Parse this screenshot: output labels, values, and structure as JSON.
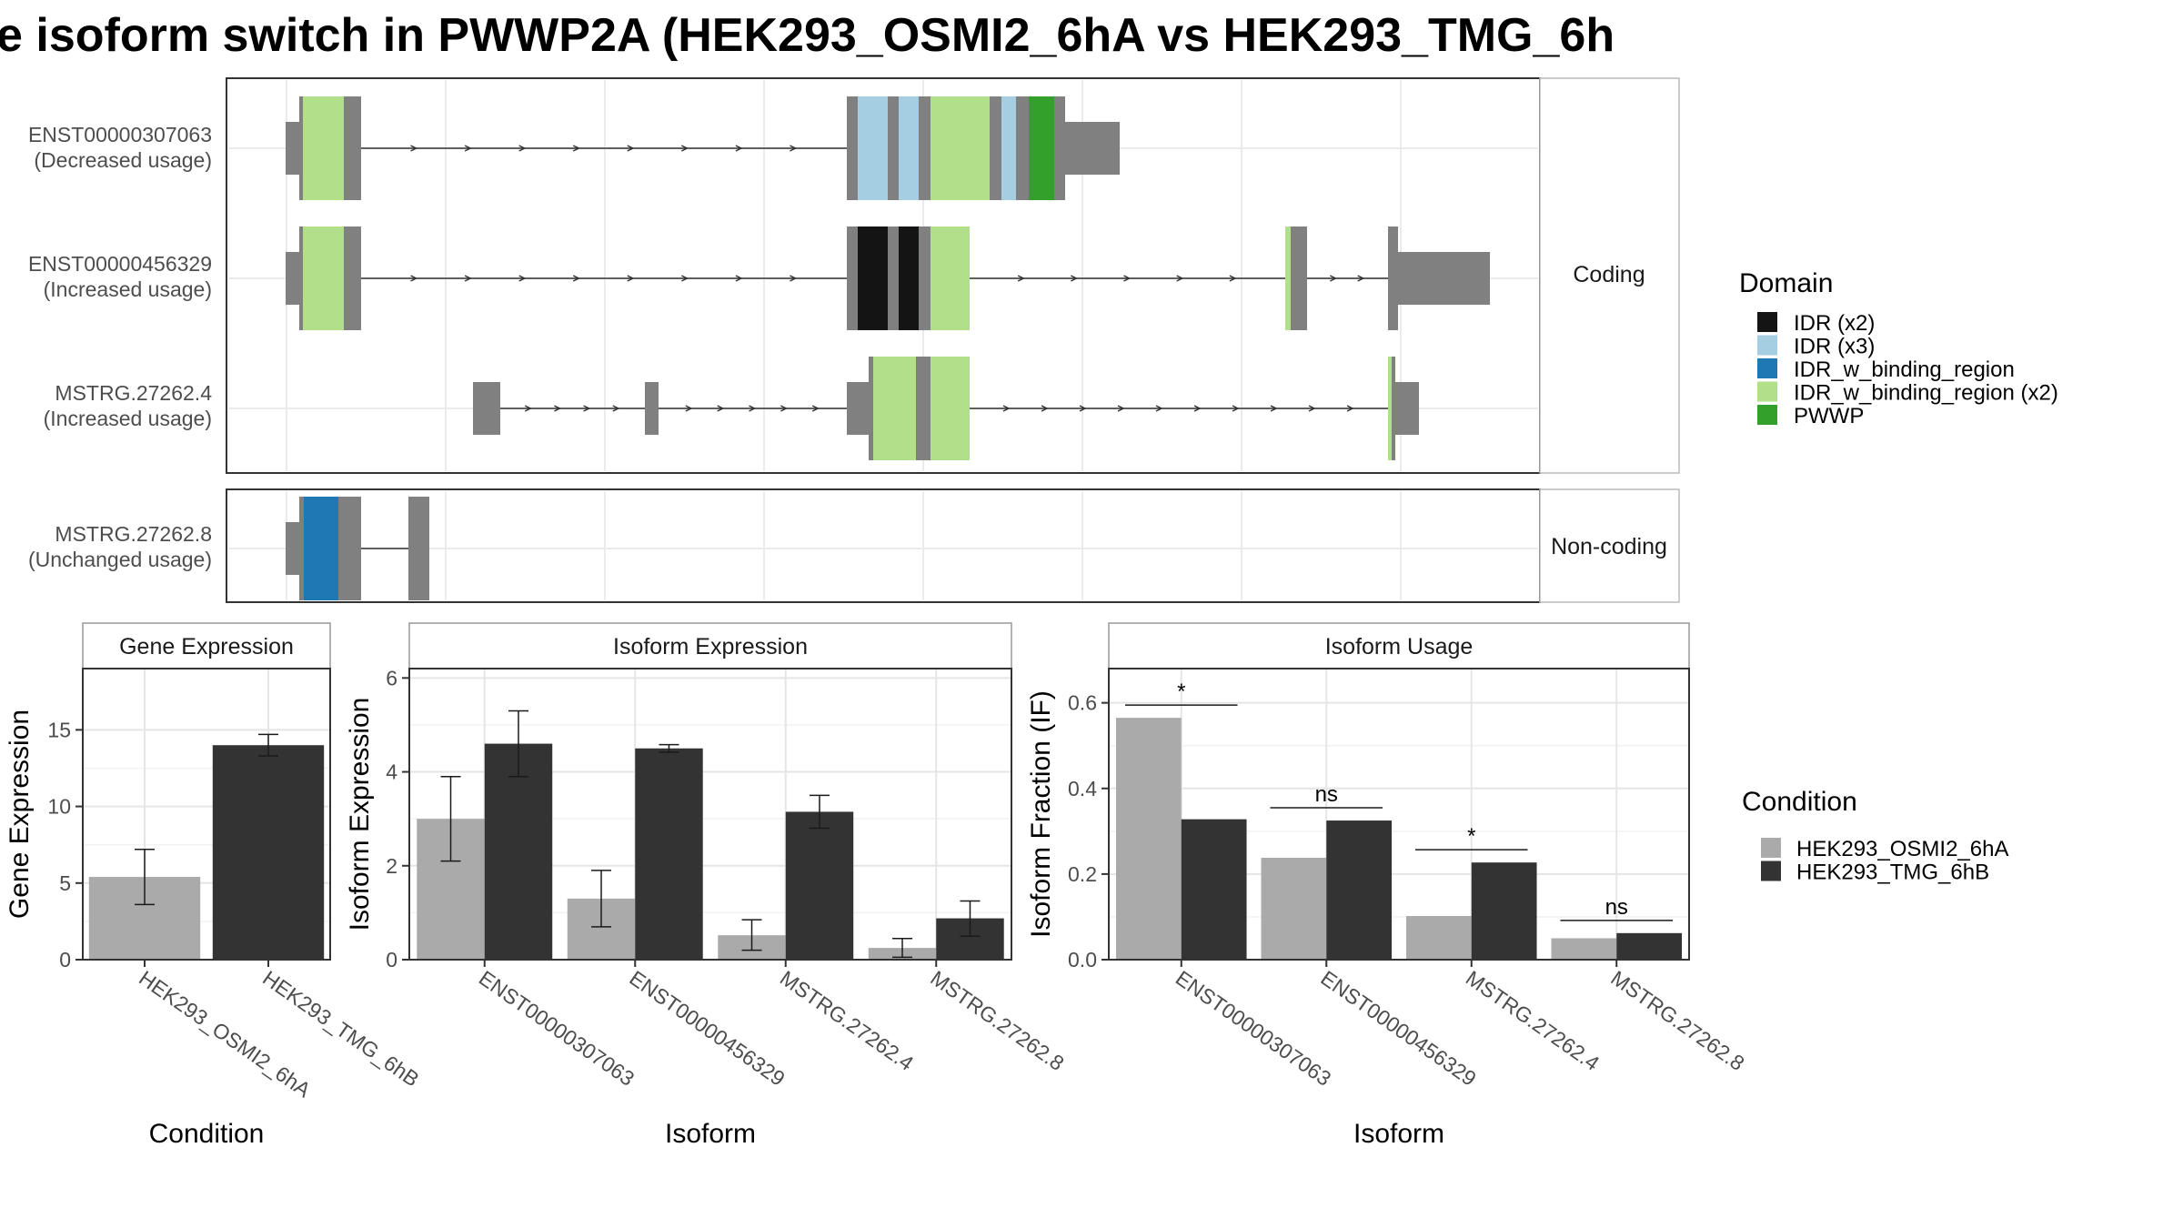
{
  "title": "e isoform switch in PWWP2A (HEK293_OSMI2_6hA vs HEK293_TMG_6h",
  "colors": {
    "exon": "#808080",
    "idr_x2": "#141414",
    "idr_x3": "#A6CEE3",
    "idr_w_binding_region": "#1F78B4",
    "idr_w_binding_region_x2": "#B2DF8A",
    "pwwp": "#33A02C",
    "cond_a": "#AAAAAA",
    "cond_b": "#333333"
  },
  "structure": {
    "coding_strip": "Coding",
    "noncoding_strip": "Non-coding",
    "isoforms": [
      {
        "id": "ENST00000307063",
        "status": "(Decreased usage)",
        "group": "coding"
      },
      {
        "id": "ENST00000456329",
        "status": "(Increased usage)",
        "group": "coding"
      },
      {
        "id": "MSTRG.27262.4",
        "status": "(Increased usage)",
        "group": "coding"
      },
      {
        "id": "MSTRG.27262.8",
        "status": "(Unchanged usage)",
        "group": "noncoding"
      }
    ]
  },
  "legend_domain": {
    "title": "Domain",
    "items": [
      {
        "label": "IDR (x2)",
        "color": "#141414"
      },
      {
        "label": "IDR (x3)",
        "color": "#A6CEE3"
      },
      {
        "label": "IDR_w_binding_region",
        "color": "#1F78B4"
      },
      {
        "label": "IDR_w_binding_region (x2)",
        "color": "#B2DF8A"
      },
      {
        "label": "PWWP",
        "color": "#33A02C"
      }
    ]
  },
  "legend_condition": {
    "title": "Condition",
    "items": [
      {
        "label": "HEK293_OSMI2_6hA",
        "color": "#AAAAAA"
      },
      {
        "label": "HEK293_TMG_6hB",
        "color": "#333333"
      }
    ]
  },
  "chart_data": [
    {
      "type": "bar",
      "panel": "Gene Expression",
      "xlabel": "Condition",
      "ylabel": "Gene Expression",
      "ylim": [
        0,
        19
      ],
      "yticks": [
        0,
        5,
        10,
        15
      ],
      "categories": [
        "HEK293_OSMI2_6hA",
        "HEK293_TMG_6hB"
      ],
      "values": [
        5.4,
        14.0
      ],
      "error_low": [
        3.6,
        13.3
      ],
      "error_high": [
        7.2,
        14.7
      ]
    },
    {
      "type": "bar",
      "panel": "Isoform Expression",
      "xlabel": "Isoform",
      "ylabel": "Isoform Expression",
      "ylim": [
        0,
        6.2
      ],
      "yticks": [
        0,
        2,
        4,
        6
      ],
      "categories": [
        "ENST00000307063",
        "ENST00000456329",
        "MSTRG.27262.4",
        "MSTRG.27262.8"
      ],
      "series": [
        {
          "name": "HEK293_OSMI2_6hA",
          "values": [
            3.0,
            1.3,
            0.52,
            0.25
          ],
          "error_low": [
            2.1,
            0.7,
            0.2,
            0.05
          ],
          "error_high": [
            3.9,
            1.9,
            0.85,
            0.45
          ]
        },
        {
          "name": "HEK293_TMG_6hB",
          "values": [
            4.6,
            4.5,
            3.15,
            0.88
          ],
          "error_low": [
            3.9,
            4.42,
            2.8,
            0.5
          ],
          "error_high": [
            5.3,
            4.58,
            3.5,
            1.25
          ]
        }
      ]
    },
    {
      "type": "bar",
      "panel": "Isoform Usage",
      "xlabel": "Isoform",
      "ylabel": "Isoform Fraction (IF)",
      "ylim": [
        0,
        0.68
      ],
      "yticks": [
        0.0,
        0.2,
        0.4,
        0.6
      ],
      "categories": [
        "ENST00000307063",
        "ENST00000456329",
        "MSTRG.27262.4",
        "MSTRG.27262.8"
      ],
      "series": [
        {
          "name": "HEK293_OSMI2_6hA",
          "values": [
            0.565,
            0.238,
            0.102,
            0.05
          ]
        },
        {
          "name": "HEK293_TMG_6hB",
          "values": [
            0.328,
            0.325,
            0.227,
            0.062
          ]
        }
      ],
      "significance": [
        "*",
        "ns",
        "*",
        "ns"
      ]
    }
  ]
}
